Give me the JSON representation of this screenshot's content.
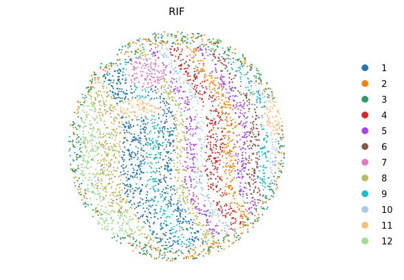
{
  "chart_data": {
    "type": "scatter",
    "title": "RIF",
    "xlabel": "",
    "ylabel": "",
    "grid": false,
    "axes_visible": false,
    "legend_placement": "right",
    "series": [
      {
        "name": "1",
        "color": "#1f77b4"
      },
      {
        "name": "2",
        "color": "#ff7f0e"
      },
      {
        "name": "3",
        "color": "#279e68"
      },
      {
        "name": "4",
        "color": "#d62728"
      },
      {
        "name": "5",
        "color": "#aa40fc"
      },
      {
        "name": "6",
        "color": "#8c564b"
      },
      {
        "name": "7",
        "color": "#e377c2"
      },
      {
        "name": "8",
        "color": "#b5bd61"
      },
      {
        "name": "9",
        "color": "#17becf"
      },
      {
        "name": "10",
        "color": "#aec7e8"
      },
      {
        "name": "11",
        "color": "#ffbb78"
      },
      {
        "name": "12",
        "color": "#98df8a"
      }
    ]
  }
}
